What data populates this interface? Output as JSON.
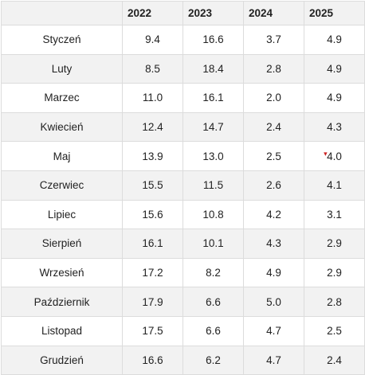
{
  "table": {
    "headers": [
      "",
      "2022",
      "2023",
      "2024",
      "2025"
    ],
    "rows": [
      {
        "month": "Styczeń",
        "values": [
          "9.4",
          "16.6",
          "3.7",
          "4.9"
        ]
      },
      {
        "month": "Luty",
        "values": [
          "8.5",
          "18.4",
          "2.8",
          "4.9"
        ]
      },
      {
        "month": "Marzec",
        "values": [
          "11.0",
          "16.1",
          "2.0",
          "4.9"
        ]
      },
      {
        "month": "Kwiecień",
        "values": [
          "12.4",
          "14.7",
          "2.4",
          "4.3"
        ]
      },
      {
        "month": "Maj",
        "values": [
          "13.9",
          "13.0",
          "2.5",
          "4.0"
        ]
      },
      {
        "month": "Czerwiec",
        "values": [
          "15.5",
          "11.5",
          "2.6",
          "4.1"
        ]
      },
      {
        "month": "Lipiec",
        "values": [
          "15.6",
          "10.8",
          "4.2",
          "3.1"
        ]
      },
      {
        "month": "Sierpień",
        "values": [
          "16.1",
          "10.1",
          "4.3",
          "2.9"
        ]
      },
      {
        "month": "Wrzesień",
        "values": [
          "17.2",
          "8.2",
          "4.9",
          "2.9"
        ]
      },
      {
        "month": "Październik",
        "values": [
          "17.9",
          "6.6",
          "5.0",
          "2.8"
        ]
      },
      {
        "month": "Listopad",
        "values": [
          "17.5",
          "6.6",
          "4.7",
          "2.5"
        ]
      },
      {
        "month": "Grudzień",
        "values": [
          "16.6",
          "6.2",
          "4.7",
          "2.4"
        ]
      }
    ]
  },
  "colors": {
    "header_bg": "#f2f2f2",
    "stripe_bg": "#f2f2f2",
    "border": "#dcdcdc",
    "text": "#222222",
    "marker": "#cc2222"
  },
  "icons": {
    "marker": "red-triangle-marker-icon"
  }
}
